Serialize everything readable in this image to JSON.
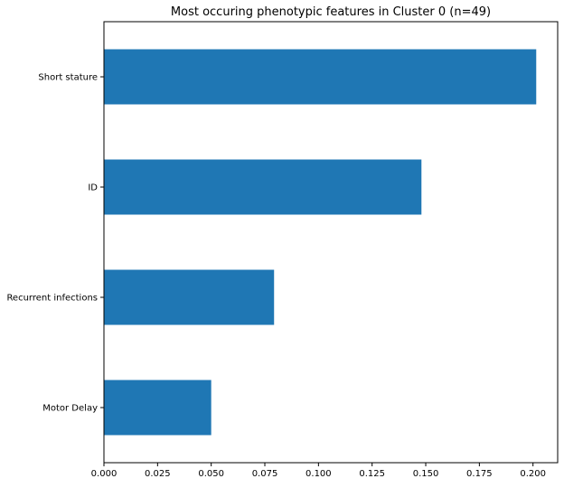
{
  "chart_data": {
    "type": "bar",
    "orientation": "horizontal",
    "title": "Most occuring phenotypic features in Cluster 0 (n=49)",
    "xlabel": "",
    "ylabel": "",
    "categories": [
      "Short stature",
      "ID",
      "Recurrent infections",
      "Motor Delay"
    ],
    "values": [
      0.2015,
      0.148,
      0.0793,
      0.05
    ],
    "xlim": [
      0.0,
      0.2115
    ],
    "xticks": [
      0.0,
      0.025,
      0.05,
      0.075,
      0.1,
      0.125,
      0.15,
      0.175,
      0.2
    ],
    "xtick_labels": [
      "0.000",
      "0.025",
      "0.050",
      "0.075",
      "0.100",
      "0.125",
      "0.150",
      "0.175",
      "0.200"
    ],
    "grid": false,
    "legend": "none",
    "colors": {
      "bar": "#1f77b4",
      "axis": "#000000",
      "background": "#ffffff"
    }
  }
}
